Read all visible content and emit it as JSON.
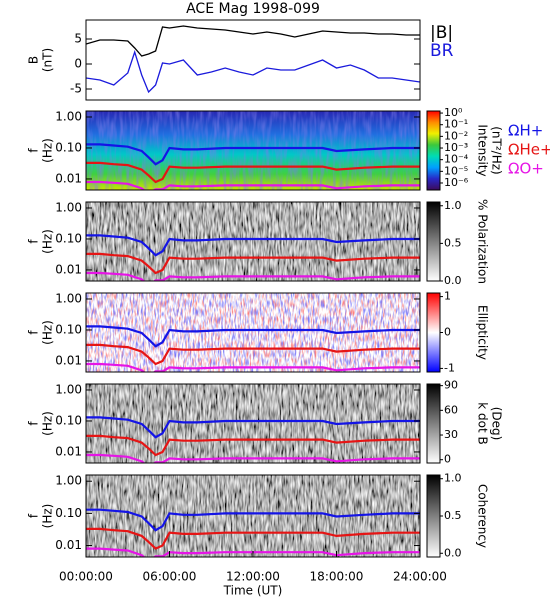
{
  "chart_data": [
    {
      "type": "line",
      "title": "ACE Mag 1998-099",
      "ylabel": [
        "B",
        "(nT)"
      ],
      "xlim": [
        0,
        24
      ],
      "ylim": [
        -7.2,
        8.8
      ],
      "yticks": [
        -5,
        0,
        5
      ],
      "x": [
        0,
        1,
        2,
        3,
        3.5,
        4,
        4.5,
        5,
        5.5,
        6,
        7,
        8,
        9,
        10,
        11,
        12,
        13,
        14,
        15,
        16,
        17,
        18,
        19,
        20,
        21,
        22,
        23,
        24
      ],
      "series": [
        {
          "name": "|B|",
          "color": "#000000",
          "values": [
            4,
            4.8,
            4.8,
            4.6,
            3.2,
            1.6,
            2,
            2.6,
            7.4,
            7.2,
            7.6,
            7.2,
            7,
            6.8,
            6.4,
            6,
            6.4,
            6,
            5.4,
            6,
            6.6,
            6.4,
            6.2,
            6.2,
            6,
            6,
            5.8,
            5.8
          ]
        },
        {
          "name": "BR",
          "color": "#1a1adc",
          "values": [
            -2.8,
            -3.2,
            -4.2,
            -1.8,
            2.4,
            -2.2,
            -5.6,
            -4.2,
            0.2,
            0,
            0.8,
            -2.2,
            -1.6,
            -0.8,
            -1.6,
            -2.2,
            -0.8,
            -1.2,
            -1.2,
            -0.2,
            0.8,
            -0.8,
            -0.2,
            -1.2,
            -2.8,
            -2.8,
            -3.2,
            -3.6
          ]
        }
      ]
    },
    {
      "type": "spectrogram",
      "ylabel": [
        "f",
        "(Hz)"
      ],
      "log": true,
      "xlim": [
        0,
        24
      ],
      "ylim": [
        0.0044,
        1.56
      ],
      "yticks": [
        {
          "value": 1,
          "label": "1.00"
        },
        {
          "value": 0.1,
          "label": "0.10"
        },
        {
          "value": 0.01,
          "label": "0.01"
        }
      ],
      "x": [
        0,
        1,
        2,
        3,
        4,
        4.5,
        5,
        5.5,
        6,
        7,
        8,
        10,
        12,
        14,
        16,
        17,
        18,
        20,
        22,
        24
      ],
      "series": [
        {
          "name": "ΩH+",
          "color": "#1414e6",
          "values": [
            0.13,
            0.13,
            0.12,
            0.11,
            0.08,
            0.05,
            0.03,
            0.04,
            0.1,
            0.09,
            0.09,
            0.1,
            0.1,
            0.1,
            0.1,
            0.1,
            0.08,
            0.09,
            0.1,
            0.1
          ]
        },
        {
          "name": "ΩHe+",
          "color": "#e61414",
          "values": [
            0.033,
            0.033,
            0.03,
            0.028,
            0.02,
            0.013,
            0.008,
            0.01,
            0.025,
            0.023,
            0.023,
            0.025,
            0.025,
            0.025,
            0.025,
            0.025,
            0.02,
            0.023,
            0.025,
            0.025
          ]
        },
        {
          "name": "ΩO+",
          "color": "#e614e6",
          "values": [
            0.008,
            0.008,
            0.0075,
            0.007,
            0.005,
            0.0033,
            0.0046,
            0.0046,
            0.0062,
            0.0058,
            0.0058,
            0.0062,
            0.0062,
            0.0062,
            0.0062,
            0.0062,
            0.005,
            0.0058,
            0.0062,
            0.0062
          ]
        }
      ],
      "colorbar": {
        "label": [
          "Intensity",
          "(nT²/Hz)"
        ],
        "log": true,
        "clim": [
          2.5e-07,
          1.5
        ],
        "colors": [
          "#3c0a5a",
          "#2828c8",
          "#00a0ff",
          "#00dcb4",
          "#3cc83c",
          "#f0f000",
          "#ff8c00",
          "#ff0000"
        ],
        "ticks": [
          {
            "value": 1,
            "label": "10⁰"
          },
          {
            "value": 0.1,
            "label": "10⁻¹"
          },
          {
            "value": 0.01,
            "label": "10⁻²"
          },
          {
            "value": 0.001,
            "label": "10⁻³"
          },
          {
            "value": 0.0001,
            "label": "10⁻⁴"
          },
          {
            "value": 1e-05,
            "label": "10⁻⁵"
          },
          {
            "value": 1e-06,
            "label": "10⁻⁶"
          }
        ]
      }
    },
    {
      "type": "spectrogram",
      "ylabel": [
        "f",
        "(Hz)"
      ],
      "log": true,
      "xlim": [
        0,
        24
      ],
      "ylim": [
        0.0044,
        1.56
      ],
      "yticks": [
        {
          "value": 1,
          "label": "1.00"
        },
        {
          "value": 0.1,
          "label": "0.10"
        },
        {
          "value": 0.01,
          "label": "0.01"
        }
      ],
      "colorbar": {
        "label": [
          "% Polarization"
        ],
        "log": false,
        "clim": [
          0,
          1.05
        ],
        "colors": [
          "#ffffff",
          "#000000"
        ],
        "ticks": [
          {
            "value": 0,
            "label": "0.0"
          },
          {
            "value": 0.5,
            "label": "0.5"
          },
          {
            "value": 1,
            "label": "1.0"
          }
        ]
      }
    },
    {
      "type": "spectrogram",
      "ylabel": [
        "f",
        "(Hz)"
      ],
      "log": true,
      "xlim": [
        0,
        24
      ],
      "ylim": [
        0.0044,
        1.56
      ],
      "yticks": [
        {
          "value": 1,
          "label": "1.00"
        },
        {
          "value": 0.1,
          "label": "0.10"
        },
        {
          "value": 0.01,
          "label": "0.01"
        }
      ],
      "colorbar": {
        "label": [
          "Ellipticity"
        ],
        "log": false,
        "clim": [
          -1.1,
          1.1
        ],
        "colors": [
          "#0000ff",
          "#ffffff",
          "#ff0000"
        ],
        "ticks": [
          -1,
          0,
          1
        ]
      }
    },
    {
      "type": "spectrogram",
      "ylabel": [
        "f",
        "(Hz)"
      ],
      "log": true,
      "xlim": [
        0,
        24
      ],
      "ylim": [
        0.0044,
        1.56
      ],
      "yticks": [
        {
          "value": 1,
          "label": "1.00"
        },
        {
          "value": 0.1,
          "label": "0.10"
        },
        {
          "value": 0.01,
          "label": "0.01"
        }
      ],
      "colorbar": {
        "label": [
          "k dot B",
          "(Deg)"
        ],
        "log": false,
        "clim": [
          -4,
          92
        ],
        "colors": [
          "#ffffff",
          "#000000"
        ],
        "ticks": [
          0,
          30,
          60,
          90
        ]
      }
    },
    {
      "type": "spectrogram",
      "ylabel": [
        "f",
        "(Hz)"
      ],
      "log": true,
      "xlim": [
        0,
        24
      ],
      "ylim": [
        0.0044,
        1.56
      ],
      "yticks": [
        {
          "value": 1,
          "label": "1.00"
        },
        {
          "value": 0.1,
          "label": "0.10"
        },
        {
          "value": 0.01,
          "label": "0.01"
        }
      ],
      "xlabel": "Time (UT)",
      "xticks": [
        {
          "value": 0,
          "label": "00:00:00"
        },
        {
          "value": 6,
          "label": "06:00:00"
        },
        {
          "value": 12,
          "label": "12:00:00"
        },
        {
          "value": 18,
          "label": "18:00:00"
        },
        {
          "value": 24,
          "label": "24:00:00"
        }
      ],
      "colorbar": {
        "label": [
          "Coherency"
        ],
        "log": false,
        "clim": [
          -0.05,
          1.05
        ],
        "colors": [
          "#ffffff",
          "#000000"
        ],
        "ticks": [
          {
            "value": 0,
            "label": "0.0"
          },
          {
            "value": 0.5,
            "label": "0.5"
          },
          {
            "value": 1,
            "label": "1.0"
          }
        ]
      }
    }
  ]
}
